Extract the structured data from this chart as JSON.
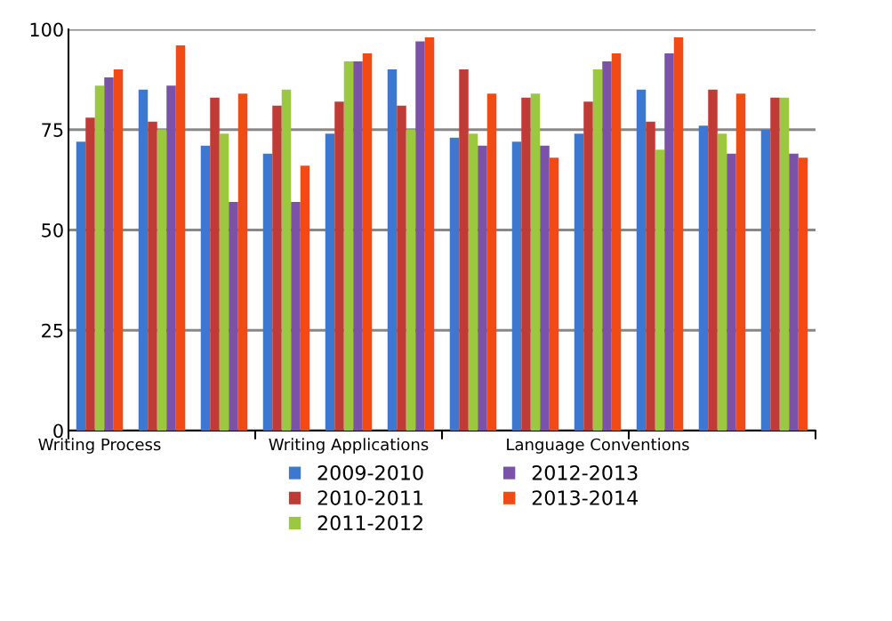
{
  "chart_data": {
    "type": "bar",
    "categories": [
      "Writing Process",
      null,
      null,
      null,
      "Writing Applications",
      null,
      null,
      null,
      "Language Conventions",
      null,
      null,
      null
    ],
    "series": [
      {
        "name": "2009-2010",
        "color": "#3c78d0",
        "values": [
          72,
          85,
          71,
          69,
          74,
          90,
          73,
          72,
          74,
          85,
          76,
          75
        ]
      },
      {
        "name": "2010-2011",
        "color": "#c03a36",
        "values": [
          78,
          77,
          83,
          81,
          82,
          81,
          90,
          83,
          82,
          77,
          85,
          83
        ]
      },
      {
        "name": "2011-2012",
        "color": "#9bc83e",
        "values": [
          86,
          75,
          74,
          85,
          92,
          75,
          74,
          84,
          90,
          70,
          74,
          83
        ]
      },
      {
        "name": "2012-2013",
        "color": "#7a52a8",
        "values": [
          88,
          86,
          57,
          57,
          92,
          97,
          71,
          71,
          92,
          94,
          69,
          69
        ]
      },
      {
        "name": "2013-2014",
        "color": "#f24a14",
        "values": [
          90,
          96,
          84,
          66,
          94,
          98,
          84,
          68,
          94,
          98,
          84,
          68
        ]
      }
    ],
    "ylim": [
      0,
      100
    ],
    "yticks": [
      0,
      25,
      50,
      75,
      100
    ],
    "grid": "y",
    "legend": "bottom"
  }
}
